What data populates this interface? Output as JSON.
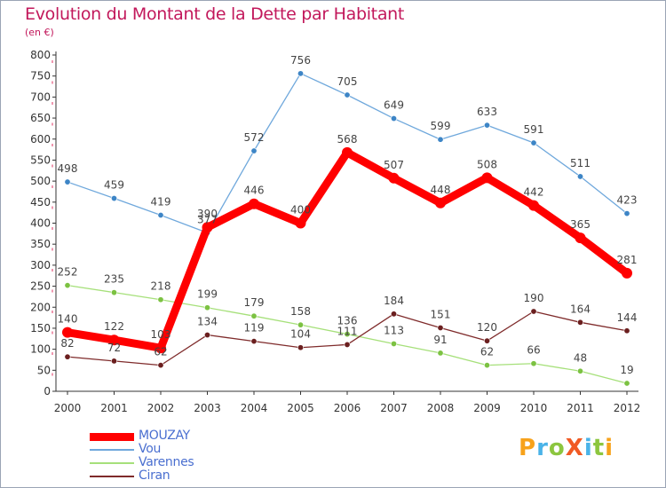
{
  "title": "Evolution du Montant de la Dette par Habitant",
  "subtitle": "(en €)",
  "logo_text": "ProXiti",
  "colors": {
    "title": "#c2185b",
    "legend_text": "#4a6fd0",
    "axis": "#333333",
    "tick_marks": "#e03060",
    "grid_tick": "#e03060"
  },
  "chart_data": {
    "type": "line",
    "title": "Evolution du Montant de la Dette par Habitant",
    "subtitle": "(en €)",
    "xlabel": "",
    "ylabel": "",
    "x": [
      "2000",
      "2001",
      "2002",
      "2003",
      "2004",
      "2005",
      "2006",
      "2007",
      "2008",
      "2009",
      "2010",
      "2011",
      "2012"
    ],
    "ylim": [
      0,
      800
    ],
    "yticks": [
      0,
      50,
      100,
      150,
      200,
      250,
      300,
      350,
      400,
      450,
      500,
      550,
      600,
      650,
      700,
      750,
      800
    ],
    "grid": false,
    "legend_position": "bottom-left",
    "series": [
      {
        "name": "MOUZAY",
        "color": "#ff0000",
        "marker_color": "#ff0000",
        "values": [
          140,
          122,
          103,
          390,
          446,
          400,
          568,
          507,
          448,
          508,
          442,
          365,
          281
        ],
        "labels": [
          "140",
          "122",
          "103",
          "390",
          "446",
          "400",
          "568",
          "507",
          "448",
          "508",
          "442",
          "365",
          "281"
        ]
      },
      {
        "name": "Vou",
        "color": "#6fa8dc",
        "marker_color": "#3d85c6",
        "values": [
          498,
          459,
          419,
          377,
          572,
          756,
          705,
          649,
          599,
          633,
          591,
          511,
          423
        ],
        "labels": [
          "498",
          "459",
          "419",
          "377",
          "572",
          "756",
          "705",
          "649",
          "599",
          "633",
          "591",
          "511",
          "423"
        ]
      },
      {
        "name": "Varennes",
        "color": "#a6e07a",
        "marker_color": "#7cc242",
        "values": [
          252,
          235,
          218,
          199,
          179,
          158,
          136,
          113,
          91,
          62,
          66,
          48,
          19
        ],
        "labels": [
          "252",
          "235",
          "218",
          "199",
          "179",
          "158",
          "136",
          "113",
          "91",
          "62",
          "66",
          "48",
          "19"
        ]
      },
      {
        "name": "Ciran",
        "color": "#7f2b2b",
        "marker_color": "#6b1f1f",
        "values": [
          82,
          72,
          62,
          134,
          119,
          104,
          111,
          184,
          151,
          120,
          190,
          164,
          144
        ],
        "labels": [
          "82",
          "72",
          "62",
          "134",
          "119",
          "104",
          "111",
          "184",
          "151",
          "120",
          "190",
          "164",
          "144"
        ]
      }
    ]
  }
}
